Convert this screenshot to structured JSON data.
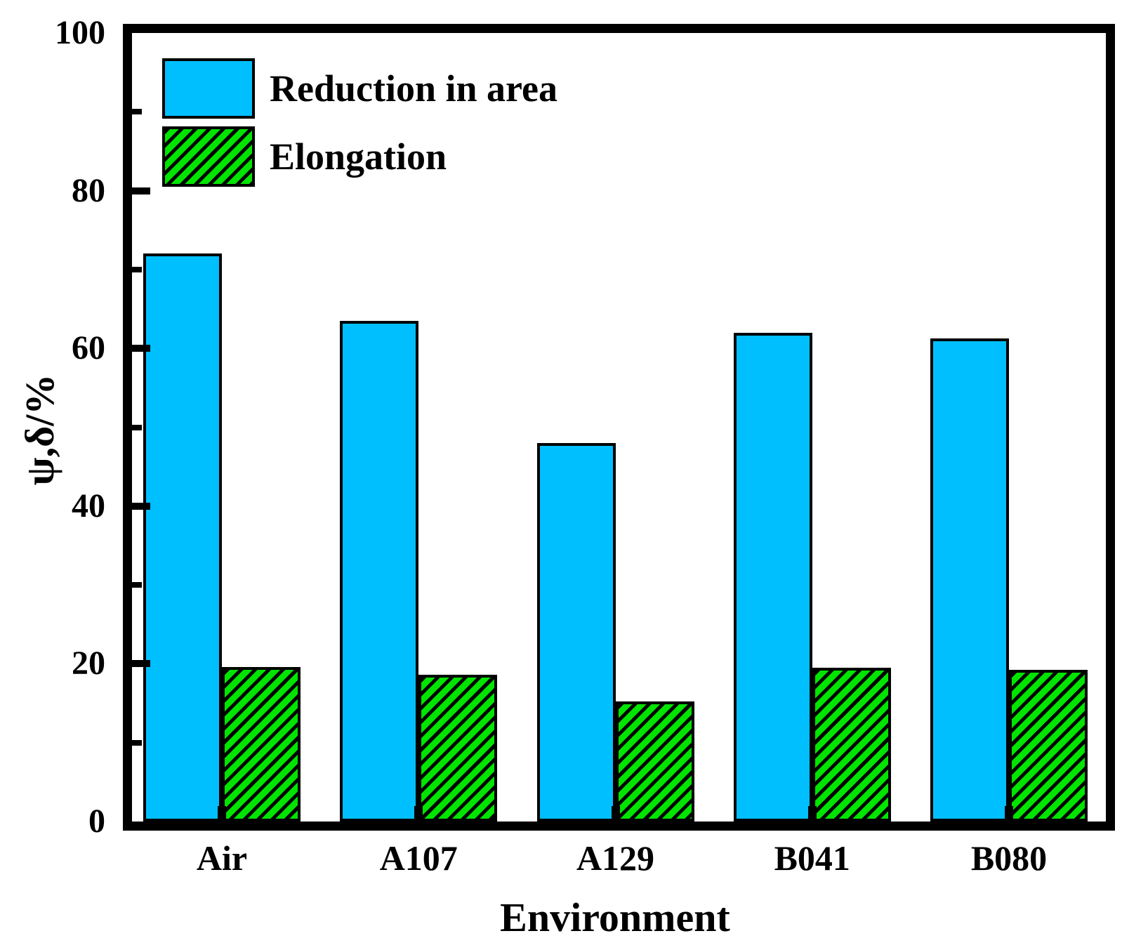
{
  "chart_data": {
    "type": "bar",
    "categories": [
      "Air",
      "A107",
      "A129",
      "B041",
      "B080"
    ],
    "series": [
      {
        "name": "Reduction in area",
        "color": "#00BFFF",
        "hatch": "none",
        "values": [
          72.0,
          63.5,
          48.0,
          62.0,
          61.3
        ]
      },
      {
        "name": "Elongation",
        "color": "#00E400",
        "hatch": "diagonal-forward",
        "values": [
          19.6,
          18.6,
          15.2,
          19.5,
          19.2
        ]
      }
    ],
    "title": "",
    "xlabel": "Environment",
    "ylabel": "ψ,δ/%",
    "ylim": [
      0,
      100
    ],
    "yticks": [
      0,
      20,
      40,
      60,
      80,
      100
    ],
    "yminorticks": [
      10,
      30,
      50,
      70,
      90
    ],
    "grid": false,
    "legend_position": "upper-left",
    "frame_color": "#000000",
    "background_color": "#ffffff"
  }
}
